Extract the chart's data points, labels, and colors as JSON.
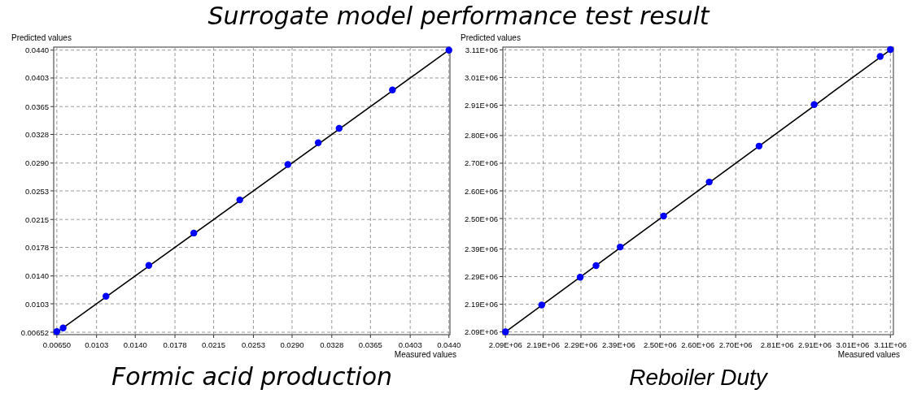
{
  "chart_data": [
    {
      "type": "scatter",
      "title": "Surrogate model performance test result",
      "xlabel": "Measured values",
      "ylabel": "Predicted values",
      "annotations": [
        "Formic acid production"
      ],
      "grid": true,
      "xlim": [
        0.0062,
        0.0441
      ],
      "ylim": [
        0.0062,
        0.0444
      ],
      "xticks": [
        {
          "value": 0.0065,
          "label": "0.00650"
        },
        0.0103,
        {
          "value": 0.014,
          "label": "0.0140"
        },
        0.0178,
        0.0215,
        0.0253,
        {
          "value": 0.029,
          "label": "0.0290"
        },
        0.0328,
        0.0365,
        0.0403,
        {
          "value": 0.044,
          "label": "0.0440"
        }
      ],
      "yticks": [
        0.00652,
        0.0103,
        {
          "value": 0.014,
          "label": "0.0140"
        },
        0.0178,
        0.0215,
        0.0253,
        {
          "value": 0.029,
          "label": "0.0290"
        },
        0.0328,
        0.0365,
        0.0403,
        {
          "value": 0.044,
          "label": "0.0440"
        }
      ],
      "series": [
        {
          "type": "line",
          "color": "#000000",
          "marker": "none",
          "x": [
            0.0065,
            0.044
          ],
          "values": [
            0.0065,
            0.044
          ]
        },
        {
          "type": "scatter",
          "color": "#0000ff",
          "marker": "circle",
          "x": [
            0.0065,
            0.0071,
            0.0112,
            0.0153,
            0.0196,
            0.024,
            0.0286,
            0.0315,
            0.0335,
            0.0386,
            0.044
          ],
          "values": [
            0.0066,
            0.0071,
            0.0113,
            0.0154,
            0.0197,
            0.0241,
            0.0288,
            0.0317,
            0.0336,
            0.0387,
            0.044
          ]
        }
      ]
    },
    {
      "type": "scatter",
      "xlabel": "Measured values",
      "ylabel": "Predicted values",
      "annotations": [
        "Reboiler Duty"
      ],
      "grid": true,
      "xlim": [
        2083000,
        3118000
      ],
      "ylim": [
        2080000,
        3120000
      ],
      "xticks": [
        {
          "value": 2090000,
          "label": "2.09E+06"
        },
        {
          "value": 2190000,
          "label": "2.19E+06"
        },
        {
          "value": 2290000,
          "label": "2.29E+06"
        },
        {
          "value": 2390000,
          "label": "2.39E+06"
        },
        {
          "value": 2500000,
          "label": "2.50E+06"
        },
        {
          "value": 2600000,
          "label": "2.60E+06"
        },
        {
          "value": 2700000,
          "label": "2.70E+06"
        },
        {
          "value": 2810000,
          "label": "2.81E+06"
        },
        {
          "value": 2910000,
          "label": "2.91E+06"
        },
        {
          "value": 3010000,
          "label": "3.01E+06"
        },
        {
          "value": 3110000,
          "label": "3.11E+06"
        }
      ],
      "yticks": [
        {
          "value": 2090000,
          "label": "2.09E+06"
        },
        {
          "value": 2190000,
          "label": "2.19E+06"
        },
        {
          "value": 2290000,
          "label": "2.29E+06"
        },
        {
          "value": 2390000,
          "label": "2.39E+06"
        },
        {
          "value": 2500000,
          "label": "2.50E+06"
        },
        {
          "value": 2600000,
          "label": "2.60E+06"
        },
        {
          "value": 2700000,
          "label": "2.70E+06"
        },
        {
          "value": 2800000,
          "label": "2.80E+06"
        },
        {
          "value": 2910000,
          "label": "2.91E+06"
        },
        {
          "value": 3010000,
          "label": "3.01E+06"
        },
        {
          "value": 3110000,
          "label": "3.11E+06"
        }
      ],
      "series": [
        {
          "type": "line",
          "color": "#000000",
          "marker": "none",
          "x": [
            2090000,
            3110000
          ],
          "values": [
            2090000,
            3110000
          ]
        },
        {
          "type": "scatter",
          "color": "#0000ff",
          "marker": "circle",
          "x": [
            2090000,
            2186000,
            2288000,
            2330000,
            2394000,
            2509000,
            2630000,
            2762000,
            2908000,
            3083000,
            3110000
          ],
          "values": [
            2090000,
            2187000,
            2288000,
            2330000,
            2397000,
            2509000,
            2632000,
            2762000,
            2912000,
            3086000,
            3111000
          ]
        }
      ]
    }
  ]
}
